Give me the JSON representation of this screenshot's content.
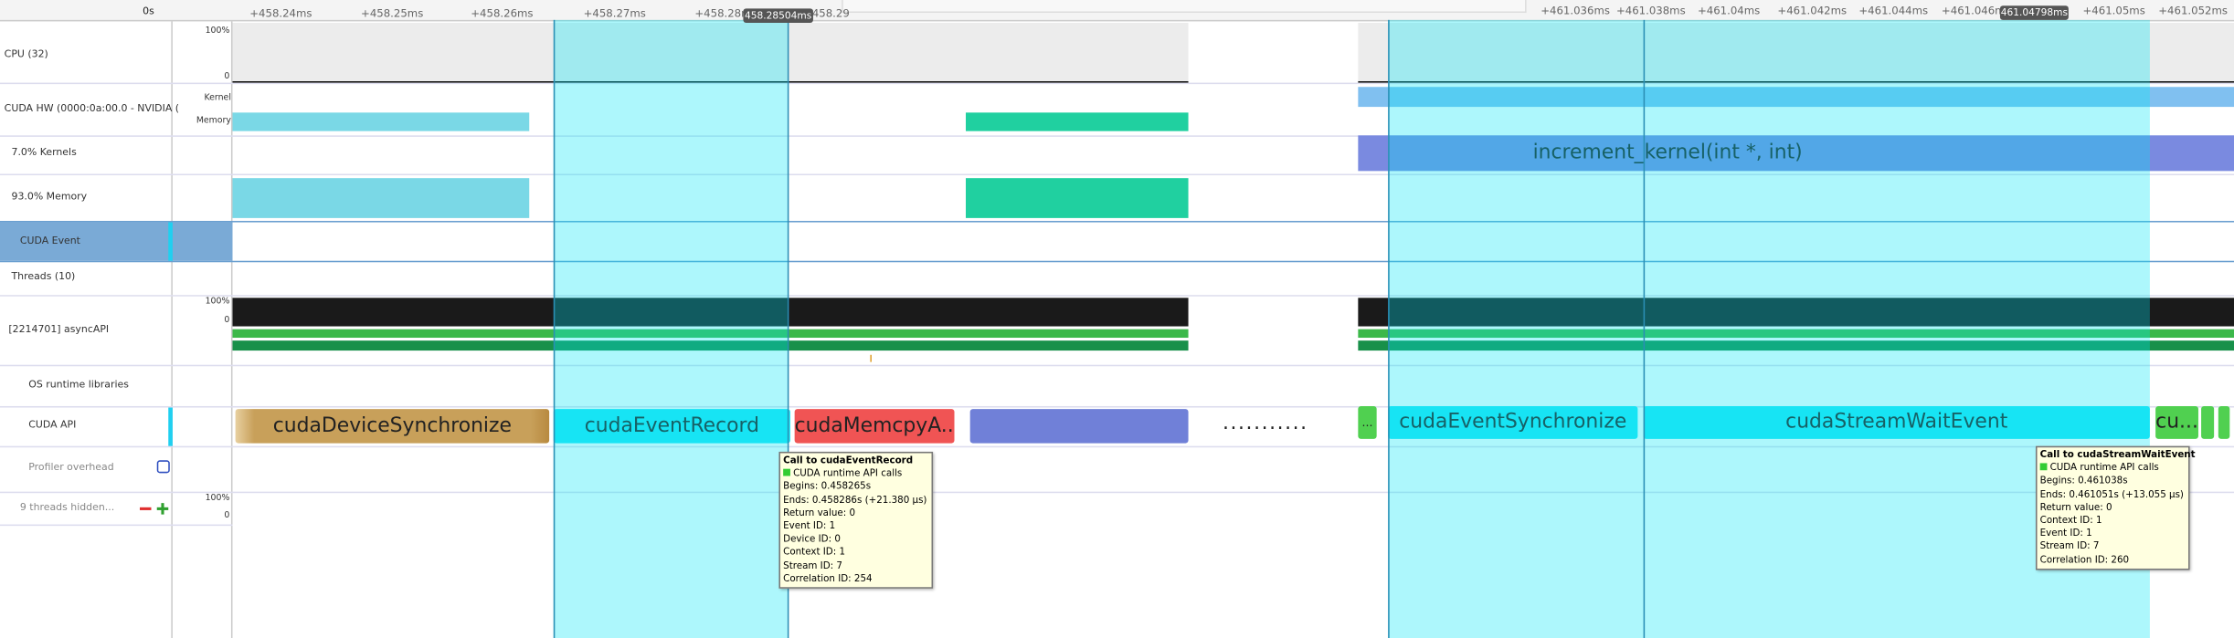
{
  "ruler": {
    "origin": "0s",
    "left_ticks": [
      "+458.24ms",
      "+458.25ms",
      "+458.26ms",
      "+458.27ms",
      "+458.28ms",
      "+458.29"
    ],
    "left_cursor": "458.28504ms",
    "right_ticks": [
      "+461.036ms",
      "+461.038ms",
      "+461.04ms",
      "+461.042ms",
      "+461.044ms",
      "+461.046ms",
      "+461.05ms",
      "+461.052ms"
    ],
    "right_cursor": "461.04798ms"
  },
  "rows": {
    "cpu": "CPU (32)",
    "cuda_hw": "CUDA HW (0000:0a:00.0 - NVIDIA (",
    "kernels": "7.0% Kernels",
    "memory": "93.0% Memory",
    "cuda_event": "CUDA Event",
    "threads": "Threads (10)",
    "async_api": "[2214701] asyncAPI",
    "os_runtime": "OS runtime libraries",
    "cuda_api": "CUDA API",
    "profiler": "Profiler overhead",
    "hidden": "9 threads hidden..."
  },
  "scale_labels": {
    "cpu_max": "100%",
    "cpu_min": "0",
    "kernel": "Kernel",
    "memory": "Memory",
    "async_max": "100%",
    "async_min": "0",
    "hidden_max": "100%",
    "hidden_min": "0"
  },
  "timeline": {
    "kernel_name": "increment_kernel(int *, int)",
    "separator": "...........",
    "left_calls": [
      "cudaDeviceSynchronize",
      "cudaEventRecord",
      "cudaMemcpyA..."
    ],
    "right_calls": [
      "...",
      "cudaEventSynchronize",
      "cudaStreamWaitEvent",
      "cu..."
    ]
  },
  "tooltips": [
    {
      "title": "Call to cudaEventRecord",
      "lines": [
        "CUDA runtime API calls",
        "Begins: 0.458265s",
        "Ends: 0.458286s (+21.380 μs)",
        "Return value: 0",
        "Event ID: 1",
        "Device ID: 0",
        "Context ID: 1",
        "Stream ID: 7",
        "Correlation ID: 254"
      ]
    },
    {
      "title": "Call to cudaStreamWaitEvent",
      "lines": [
        "CUDA runtime API calls",
        "Begins: 0.461038s",
        "Ends: 0.461051s (+13.055 μs)",
        "Return value: 0",
        "Context ID: 1",
        "Event ID: 1",
        "Stream ID: 7",
        "Correlation ID: 260"
      ]
    }
  ]
}
